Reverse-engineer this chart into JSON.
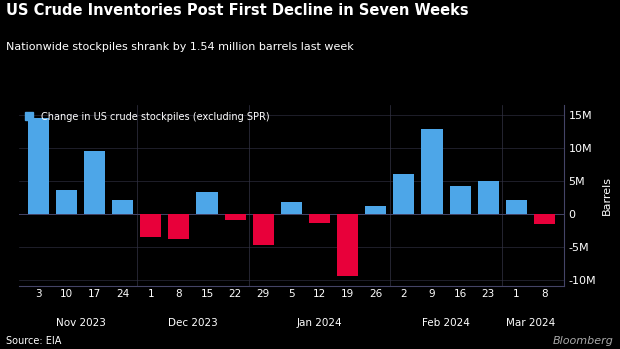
{
  "title": "US Crude Inventories Post First Decline in Seven Weeks",
  "subtitle": "Nationwide stockpiles shrank by 1.54 million barrels last week",
  "legend_label": "Change in US crude stockpiles (excluding SPR)",
  "source": "Source: EIA",
  "watermark": "Bloomberg",
  "background_color": "#000000",
  "text_color": "#ffffff",
  "bar_color_pos": "#4da6e8",
  "bar_color_neg": "#e8003a",
  "grid_color": "#2a2a3a",
  "ylabel": "Barrels",
  "ylim": [
    -11000000,
    16500000
  ],
  "yticks": [
    -10000000,
    -5000000,
    0,
    5000000,
    10000000,
    15000000
  ],
  "ytick_labels": [
    "-10M",
    "-5M",
    "0",
    "5M",
    "10M",
    "15M"
  ],
  "x_tick_labels": [
    "3",
    "10",
    "17",
    "24",
    "1",
    "8",
    "15",
    "22",
    "29",
    "5",
    "12",
    "19",
    "26",
    "2",
    "9",
    "16",
    "23",
    "1",
    "8"
  ],
  "month_names": [
    "Nov 2023",
    "Dec 2023",
    "Jan 2024",
    "Feb 2024",
    "Mar 2024"
  ],
  "month_centers": [
    1.5,
    5.5,
    10.0,
    14.5,
    17.5
  ],
  "month_separators": [
    3.5,
    7.5,
    12.5,
    16.5
  ],
  "values": [
    14500000,
    3500000,
    9500000,
    2000000,
    -3500000,
    -3800000,
    3200000,
    -1000000,
    -4700000,
    1800000,
    -1500000,
    -9500000,
    1200000,
    6000000,
    12800000,
    4200000,
    5000000,
    2000000,
    -1540000
  ]
}
